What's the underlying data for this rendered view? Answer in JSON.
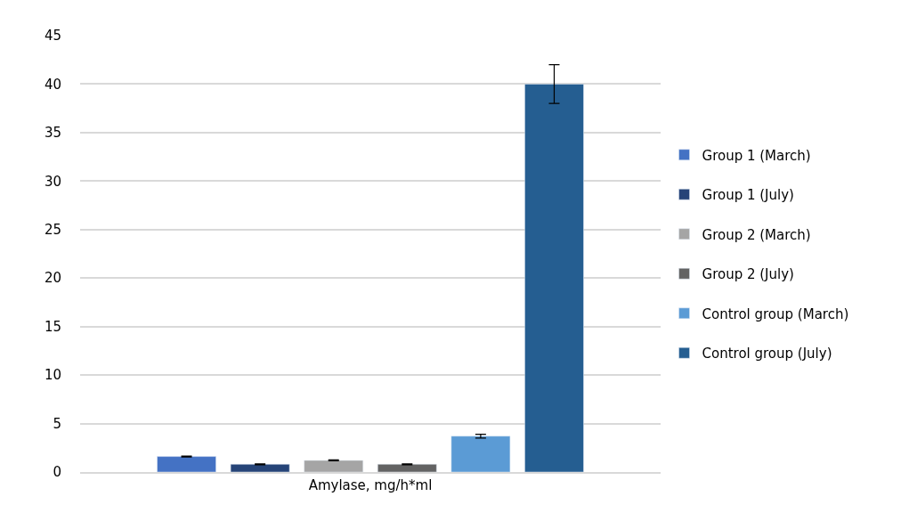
{
  "chart_data": {
    "type": "bar",
    "categories": [
      "Amylase, mg/h*ml"
    ],
    "series": [
      {
        "name": "Group 1 (March)",
        "color": "#4472c4",
        "values": [
          1.6
        ],
        "errors": [
          0.05
        ]
      },
      {
        "name": "Group 1 (July)",
        "color": "#264478",
        "values": [
          0.8
        ],
        "errors": [
          0.05
        ]
      },
      {
        "name": "Group 2 (March)",
        "color": "#a5a5a5",
        "values": [
          1.2
        ],
        "errors": [
          0.05
        ]
      },
      {
        "name": "Group 2 (July)",
        "color": "#636363",
        "values": [
          0.8
        ],
        "errors": [
          0.05
        ]
      },
      {
        "name": "Control group (March)",
        "color": "#5b9bd5",
        "values": [
          3.7
        ],
        "errors": [
          0.2
        ]
      },
      {
        "name": "Control group (July)",
        "color": "#255e91",
        "values": [
          40
        ],
        "errors": [
          2
        ]
      }
    ],
    "ylim": [
      0,
      45
    ],
    "yticks": [
      0,
      5,
      10,
      15,
      20,
      25,
      30,
      35,
      40,
      45
    ],
    "grid": "y",
    "legend": "right"
  }
}
